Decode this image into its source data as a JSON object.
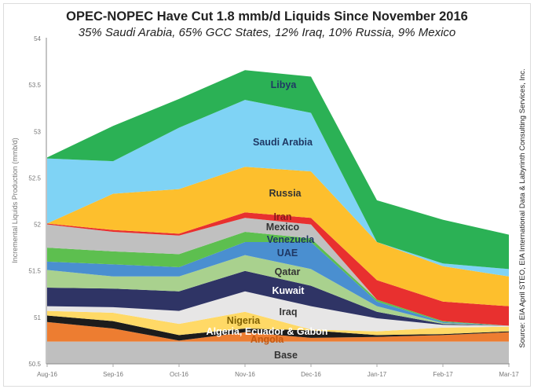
{
  "chart_data": {
    "type": "area",
    "stacked": true,
    "title": "OPEC-NOPEC Have Cut 1.8 mmb/d Liquids Since November 2016",
    "subtitle": "35% Saudi Arabia, 65% GCC States, 12% Iraq, 10% Russia, 9% Mexico",
    "ylabel": "Incremental Liquids Production (mmb/d)",
    "xlabel": "",
    "source": "Source:  EIA April STEO, EIA International Data & Labyrinth Consulting Services, Inc.",
    "ylim": [
      50.5,
      54
    ],
    "yticks": [
      "50.5",
      "51",
      "51.5",
      "52",
      "52.5",
      "53",
      "53.5",
      "54"
    ],
    "categories": [
      "Aug-16",
      "Sep-16",
      "Oct-16",
      "Nov-16",
      "Dec-16",
      "Jan-17",
      "Feb-17",
      "Mar-17"
    ],
    "series": [
      {
        "name": "Base",
        "color": "#bfbfbf",
        "text_color": "#333",
        "top": [
          50.74,
          50.74,
          50.74,
          50.74,
          50.74,
          50.74,
          50.74,
          50.74
        ]
      },
      {
        "name": "Angola",
        "color": "#ed7d31",
        "text_color": "#c55a11",
        "top": [
          50.95,
          50.88,
          50.75,
          50.84,
          50.78,
          50.79,
          50.81,
          50.84
        ]
      },
      {
        "name": "Algeria, Ecuador & Gabon",
        "color": "#1c1c1c",
        "text_color": "#ffffff",
        "top": [
          51.02,
          50.96,
          50.81,
          50.88,
          50.86,
          50.81,
          50.82,
          50.85
        ]
      },
      {
        "name": "Nigeria",
        "color": "#ffd966",
        "text_color": "#7f6000",
        "top": [
          51.07,
          51.05,
          50.93,
          51.06,
          50.87,
          50.85,
          50.89,
          50.9
        ]
      },
      {
        "name": "Iraq",
        "color": "#e7e6e6",
        "text_color": "#333",
        "top": [
          51.12,
          51.11,
          51.07,
          51.28,
          51.12,
          50.99,
          50.92,
          50.91
        ]
      },
      {
        "name": "Kuwait",
        "color": "#2f3465",
        "text_color": "#ffffff",
        "top": [
          51.32,
          51.31,
          51.28,
          51.5,
          51.34,
          51.06,
          50.93,
          50.91
        ]
      },
      {
        "name": "Qatar",
        "color": "#a9d18e",
        "text_color": "#333",
        "top": [
          51.51,
          51.44,
          51.44,
          51.67,
          51.52,
          51.12,
          50.94,
          50.91
        ]
      },
      {
        "name": "UAE",
        "color": "#4a8fd0",
        "text_color": "#1f3864",
        "top": [
          51.6,
          51.57,
          51.54,
          51.81,
          51.81,
          51.17,
          50.95,
          50.91
        ]
      },
      {
        "name": "Venezuela",
        "color": "#5dbf4f",
        "text_color": "#1f3864",
        "top": [
          51.75,
          51.71,
          51.68,
          51.92,
          51.85,
          51.19,
          50.96,
          50.91
        ]
      },
      {
        "name": "Mexico",
        "color": "#c0c0c0",
        "text_color": "#333",
        "top": [
          52.0,
          51.92,
          51.88,
          52.07,
          52.0,
          51.19,
          50.96,
          50.91
        ]
      },
      {
        "name": "Iran",
        "color": "#e8302f",
        "text_color": "#8b1a1a",
        "top": [
          52.01,
          51.94,
          51.9,
          52.13,
          52.07,
          51.4,
          51.17,
          51.12
        ]
      },
      {
        "name": "Russia",
        "color": "#fdbf2d",
        "text_color": "#333",
        "top": [
          52.01,
          52.33,
          52.38,
          52.62,
          52.57,
          51.81,
          51.55,
          51.44
        ]
      },
      {
        "name": "Saudi Arabia",
        "color": "#7fd3f5",
        "text_color": "#1f3864",
        "top": [
          52.71,
          52.68,
          53.04,
          53.34,
          53.2,
          51.81,
          51.58,
          51.52
        ]
      },
      {
        "name": "Libya",
        "color": "#2bb155",
        "text_color": "#1f3864",
        "top": [
          52.72,
          53.06,
          53.35,
          53.66,
          53.59,
          52.26,
          52.05,
          51.89
        ]
      }
    ]
  }
}
